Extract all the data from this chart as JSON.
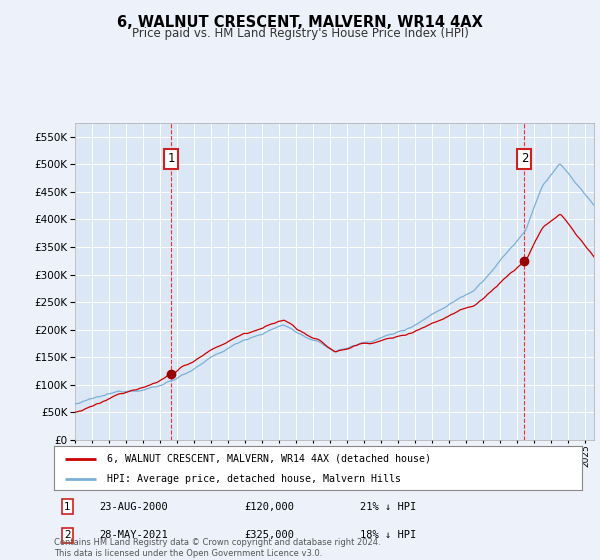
{
  "title": "6, WALNUT CRESCENT, MALVERN, WR14 4AX",
  "subtitle": "Price paid vs. HM Land Registry's House Price Index (HPI)",
  "background_color": "#edf2fa",
  "plot_bg_color": "#dce7f5",
  "ylim": [
    0,
    575000
  ],
  "yticks": [
    0,
    50000,
    100000,
    150000,
    200000,
    250000,
    300000,
    350000,
    400000,
    450000,
    500000,
    550000
  ],
  "hpi_color": "#7ab0d8",
  "price_color": "#cc0000",
  "sale1": {
    "date_x": 2000.646,
    "price": 120000,
    "label": "1",
    "date_str": "23-AUG-2000",
    "pct": "21% ↓ HPI"
  },
  "sale2": {
    "date_x": 2021.411,
    "price": 325000,
    "label": "2",
    "date_str": "28-MAY-2021",
    "pct": "18% ↓ HPI"
  },
  "legend_line1": "6, WALNUT CRESCENT, MALVERN, WR14 4AX (detached house)",
  "legend_line2": "HPI: Average price, detached house, Malvern Hills",
  "footnote": "Contains HM Land Registry data © Crown copyright and database right 2024.\nThis data is licensed under the Open Government Licence v3.0.",
  "xmin": 1995.0,
  "xmax": 2025.5,
  "hpi_waypoints_t": [
    0.0,
    0.167,
    0.333,
    0.4,
    0.5,
    0.633,
    0.7,
    0.767,
    0.867,
    0.9,
    0.933,
    1.0
  ],
  "hpi_waypoints_v": [
    65000,
    100000,
    185000,
    210000,
    160000,
    200000,
    240000,
    280000,
    390000,
    470000,
    510000,
    430000
  ],
  "price_scale_before": 0.78,
  "price_scale_after": 0.82
}
